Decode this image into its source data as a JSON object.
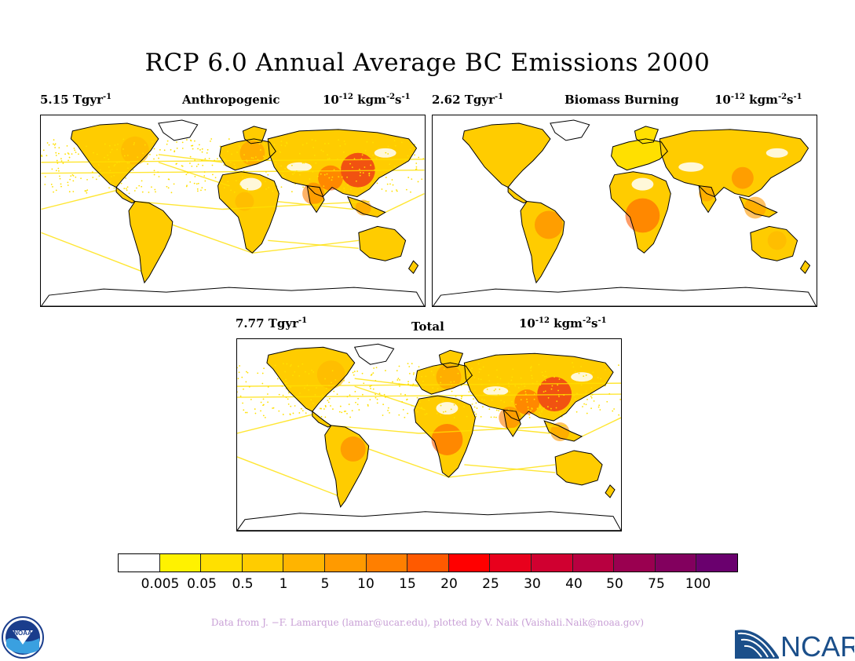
{
  "title": "RCP 6.0 Annual Average BC Emissions 2000",
  "panels": [
    {
      "id": "anthropogenic",
      "total_value": "5.15 Tgyr",
      "total_exp": "-1",
      "name": "Anthropogenic",
      "unit_base": "10",
      "unit_exp": "-12",
      "unit_mid": " kgm",
      "unit_exp2": "-2",
      "unit_s": "s",
      "unit_exp3": "-1"
    },
    {
      "id": "biomass",
      "total_value": "2.62 Tgyr",
      "total_exp": "-1",
      "name": "Biomass Burning",
      "unit_base": "10",
      "unit_exp": "-12",
      "unit_mid": " kgm",
      "unit_exp2": "-2",
      "unit_s": "s",
      "unit_exp3": "-1"
    },
    {
      "id": "total",
      "total_value": "7.77 Tgyr",
      "total_exp": "-1",
      "name": "Total",
      "unit_base": "10",
      "unit_exp": "-12",
      "unit_mid": " kgm",
      "unit_exp2": "-2",
      "unit_s": "s",
      "unit_exp3": "-1"
    }
  ],
  "colorbar": {
    "colors": [
      "#ffffff",
      "#fff200",
      "#ffe000",
      "#ffcc00",
      "#ffb400",
      "#ff9a00",
      "#ff7f00",
      "#ff5a00",
      "#ff0000",
      "#e8001c",
      "#d00030",
      "#b80040",
      "#9a0050",
      "#82005e",
      "#6a006e"
    ],
    "labels": [
      "0.005",
      "0.05",
      "0.5",
      "1",
      "5",
      "10",
      "15",
      "20",
      "25",
      "30",
      "40",
      "50",
      "75",
      "100"
    ]
  },
  "credit": "Data from J. −F. Lamarque (lamar@ucar.edu), plotted by V. Naik (Vaishali.Naik@noaa.gov)",
  "logos": {
    "noaa_text": "NOAA",
    "ncar_text": "NCAR"
  }
}
